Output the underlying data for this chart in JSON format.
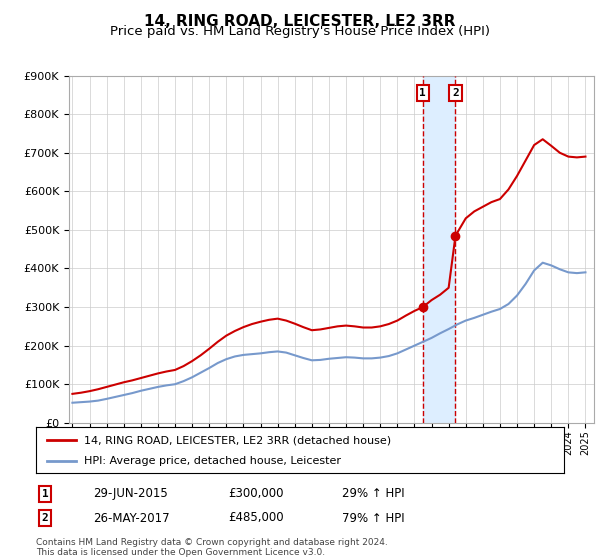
{
  "title": "14, RING ROAD, LEICESTER, LE2 3RR",
  "subtitle": "Price paid vs. HM Land Registry's House Price Index (HPI)",
  "legend_line1": "14, RING ROAD, LEICESTER, LE2 3RR (detached house)",
  "legend_line2": "HPI: Average price, detached house, Leicester",
  "footer": "Contains HM Land Registry data © Crown copyright and database right 2024.\nThis data is licensed under the Open Government Licence v3.0.",
  "sale1_date": "29-JUN-2015",
  "sale1_price": "£300,000",
  "sale1_hpi": "29% ↑ HPI",
  "sale1_year": 2015.49,
  "sale1_value": 300000,
  "sale2_date": "26-MAY-2017",
  "sale2_price": "£485,000",
  "sale2_hpi": "79% ↑ HPI",
  "sale2_year": 2017.4,
  "sale2_value": 485000,
  "ylim": [
    0,
    900000
  ],
  "xlim_start": 1994.8,
  "xlim_end": 2025.5,
  "red_color": "#cc0000",
  "blue_color": "#7799cc",
  "shade_color": "#ddeeff",
  "vline_color": "#cc0000",
  "grid_color": "#cccccc",
  "title_fontsize": 11,
  "subtitle_fontsize": 9.5,
  "ytick_labels": [
    "£0",
    "£100K",
    "£200K",
    "£300K",
    "£400K",
    "£500K",
    "£600K",
    "£700K",
    "£800K",
    "£900K"
  ],
  "ytick_values": [
    0,
    100000,
    200000,
    300000,
    400000,
    500000,
    600000,
    700000,
    800000,
    900000
  ],
  "hpi_years": [
    1995,
    1995.5,
    1996,
    1996.5,
    1997,
    1997.5,
    1998,
    1998.5,
    1999,
    1999.5,
    2000,
    2000.5,
    2001,
    2001.5,
    2002,
    2002.5,
    2003,
    2003.5,
    2004,
    2004.5,
    2005,
    2005.5,
    2006,
    2006.5,
    2007,
    2007.5,
    2008,
    2008.5,
    2009,
    2009.5,
    2010,
    2010.5,
    2011,
    2011.5,
    2012,
    2012.5,
    2013,
    2013.5,
    2014,
    2014.5,
    2015,
    2015.5,
    2016,
    2016.5,
    2017,
    2017.5,
    2018,
    2018.5,
    2019,
    2019.5,
    2020,
    2020.5,
    2021,
    2021.5,
    2022,
    2022.5,
    2023,
    2023.5,
    2024,
    2024.5,
    2025
  ],
  "hpi_values": [
    52000,
    53500,
    55000,
    57500,
    62000,
    67000,
    72000,
    77000,
    83000,
    88000,
    93000,
    97000,
    100000,
    108000,
    118000,
    130000,
    142000,
    155000,
    165000,
    172000,
    176000,
    178000,
    180000,
    183000,
    185000,
    182000,
    175000,
    168000,
    162000,
    163000,
    166000,
    168000,
    170000,
    169000,
    167000,
    167000,
    169000,
    173000,
    180000,
    190000,
    200000,
    210000,
    220000,
    232000,
    243000,
    255000,
    265000,
    272000,
    280000,
    288000,
    295000,
    308000,
    330000,
    360000,
    395000,
    415000,
    408000,
    398000,
    390000,
    388000,
    390000
  ],
  "red_years": [
    1995,
    1995.5,
    1996,
    1996.5,
    1997,
    1997.5,
    1998,
    1998.5,
    1999,
    1999.5,
    2000,
    2000.5,
    2001,
    2001.5,
    2002,
    2002.5,
    2003,
    2003.5,
    2004,
    2004.5,
    2005,
    2005.5,
    2006,
    2006.5,
    2007,
    2007.5,
    2008,
    2008.5,
    2009,
    2009.5,
    2010,
    2010.5,
    2011,
    2011.5,
    2012,
    2012.5,
    2013,
    2013.5,
    2014,
    2014.5,
    2015,
    2015.49,
    2016,
    2016.5,
    2017,
    2017.4,
    2018,
    2018.5,
    2019,
    2019.5,
    2020,
    2020.5,
    2021,
    2021.5,
    2022,
    2022.5,
    2023,
    2023.5,
    2024,
    2024.5,
    2025
  ],
  "red_values": [
    75000,
    78000,
    82000,
    87000,
    93000,
    99000,
    105000,
    110000,
    116000,
    122000,
    128000,
    133000,
    137000,
    147000,
    160000,
    175000,
    192000,
    210000,
    226000,
    238000,
    248000,
    256000,
    262000,
    267000,
    270000,
    265000,
    257000,
    248000,
    240000,
    242000,
    246000,
    250000,
    252000,
    250000,
    247000,
    247000,
    250000,
    256000,
    265000,
    278000,
    290000,
    300000,
    318000,
    332000,
    350000,
    485000,
    530000,
    548000,
    560000,
    572000,
    580000,
    605000,
    640000,
    680000,
    720000,
    735000,
    718000,
    700000,
    690000,
    688000,
    690000
  ]
}
